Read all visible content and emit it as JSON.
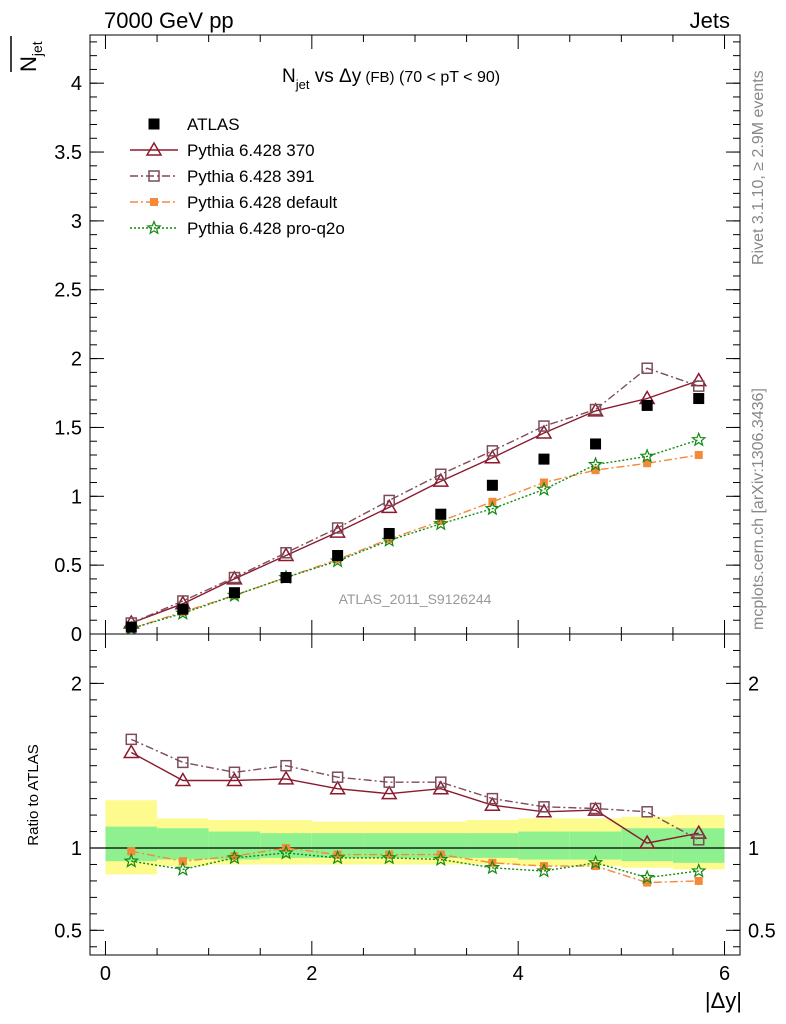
{
  "header": {
    "left": "7000 GeV pp",
    "right": "Jets"
  },
  "side_labels": {
    "rivet": "Rivet 3.1.10, ≥ 2.9M events",
    "mcplots": "mcplots.cern.ch [arXiv:1306.3436]"
  },
  "watermark": "ATLAS_2011_S9126244",
  "chart_data": {
    "type": "scatter",
    "title": {
      "pre": "N",
      "sub": "jet",
      "mid": " vs Δy",
      "small": " (FB)",
      "post": "  (70 < pT <  90)"
    },
    "xlabel": "|Δy|",
    "ylabel_main": {
      "main": "N",
      "sub": "jet"
    },
    "ylabel_ratio": "Ratio to ATLAS",
    "xlim": [
      -0.15,
      6.15
    ],
    "ylim_main": [
      0,
      4.35
    ],
    "ylim_ratio": [
      0.35,
      2.3
    ],
    "xticks": [
      0,
      2,
      4,
      6
    ],
    "yticks_main": [
      {
        "v": 0,
        "t": "0"
      },
      {
        "v": 0.5,
        "t": "0.5"
      },
      {
        "v": 1,
        "t": "1"
      },
      {
        "v": 1.5,
        "t": "1.5"
      },
      {
        "v": 2,
        "t": "2"
      },
      {
        "v": 2.5,
        "t": "2.5"
      },
      {
        "v": 3,
        "t": "3"
      },
      {
        "v": 3.5,
        "t": "3.5"
      },
      {
        "v": 4,
        "t": "4"
      }
    ],
    "yticks_ratio": [
      {
        "v": 0.5,
        "t": "0.5"
      },
      {
        "v": 1,
        "t": "1"
      },
      {
        "v": 2,
        "t": "2"
      }
    ],
    "x": [
      0.25,
      0.75,
      1.25,
      1.75,
      2.25,
      2.75,
      3.25,
      3.75,
      4.25,
      4.75,
      5.25,
      5.75
    ],
    "bins": [
      [
        0,
        0.5
      ],
      [
        0.5,
        1
      ],
      [
        1,
        1.5
      ],
      [
        1.5,
        2
      ],
      [
        2,
        2.5
      ],
      [
        2.5,
        3
      ],
      [
        3,
        3.5
      ],
      [
        3.5,
        4
      ],
      [
        4,
        4.5
      ],
      [
        4.5,
        5
      ],
      [
        5,
        5.5
      ],
      [
        5.5,
        6
      ]
    ],
    "data": {
      "name": "ATLAS",
      "values": [
        0.05,
        0.18,
        0.3,
        0.41,
        0.57,
        0.73,
        0.87,
        1.08,
        1.27,
        1.38,
        1.66,
        1.71
      ]
    },
    "band_inner": [
      [
        0.92,
        1.13
      ],
      [
        0.93,
        1.12
      ],
      [
        0.93,
        1.1
      ],
      [
        0.94,
        1.09
      ],
      [
        0.94,
        1.09
      ],
      [
        0.94,
        1.09
      ],
      [
        0.94,
        1.09
      ],
      [
        0.94,
        1.09
      ],
      [
        0.93,
        1.1
      ],
      [
        0.93,
        1.1
      ],
      [
        0.92,
        1.12
      ],
      [
        0.91,
        1.12
      ]
    ],
    "band_outer": [
      [
        0.84,
        1.29
      ],
      [
        0.89,
        1.18
      ],
      [
        0.9,
        1.17
      ],
      [
        0.9,
        1.17
      ],
      [
        0.9,
        1.16
      ],
      [
        0.9,
        1.16
      ],
      [
        0.9,
        1.16
      ],
      [
        0.9,
        1.17
      ],
      [
        0.89,
        1.18
      ],
      [
        0.89,
        1.18
      ],
      [
        0.88,
        1.19
      ],
      [
        0.87,
        1.2
      ]
    ],
    "series": [
      {
        "name": "Pythia 6.428 370",
        "color": "#8b1a2e",
        "marker": "open-triangle",
        "dash": "",
        "values": [
          0.08,
          0.22,
          0.4,
          0.57,
          0.74,
          0.92,
          1.11,
          1.28,
          1.46,
          1.62,
          1.71,
          1.84
        ],
        "ratio": [
          1.58,
          1.41,
          1.41,
          1.42,
          1.36,
          1.33,
          1.36,
          1.26,
          1.22,
          1.23,
          1.03,
          1.09
        ]
      },
      {
        "name": "Pythia 6.428 391",
        "color": "#7d4c5a",
        "marker": "open-square",
        "dash": "8,3,2,3",
        "values": [
          0.08,
          0.24,
          0.41,
          0.59,
          0.77,
          0.97,
          1.16,
          1.33,
          1.51,
          1.63,
          1.93,
          1.8
        ],
        "ratio": [
          1.66,
          1.52,
          1.46,
          1.5,
          1.43,
          1.4,
          1.4,
          1.3,
          1.25,
          1.24,
          1.22,
          1.05
        ]
      },
      {
        "name": "Pythia 6.428 default",
        "color": "#f5893a",
        "marker": "filled-square",
        "dash": "8,3,2,3",
        "values": [
          0.04,
          0.16,
          0.28,
          0.41,
          0.54,
          0.69,
          0.82,
          0.96,
          1.1,
          1.19,
          1.24,
          1.3
        ],
        "ratio": [
          0.98,
          0.92,
          0.95,
          1.0,
          0.96,
          0.96,
          0.96,
          0.91,
          0.89,
          0.89,
          0.79,
          0.8
        ]
      },
      {
        "name": "Pythia 6.428 pro-q2o",
        "color": "#118a11",
        "marker": "star",
        "dash": "2,2",
        "values": [
          0.04,
          0.15,
          0.28,
          0.41,
          0.53,
          0.68,
          0.8,
          0.91,
          1.05,
          1.23,
          1.29,
          1.41
        ],
        "ratio": [
          0.92,
          0.87,
          0.94,
          0.97,
          0.94,
          0.94,
          0.93,
          0.88,
          0.86,
          0.91,
          0.82,
          0.86
        ]
      }
    ],
    "legend_position": "top-left",
    "grid": false
  }
}
